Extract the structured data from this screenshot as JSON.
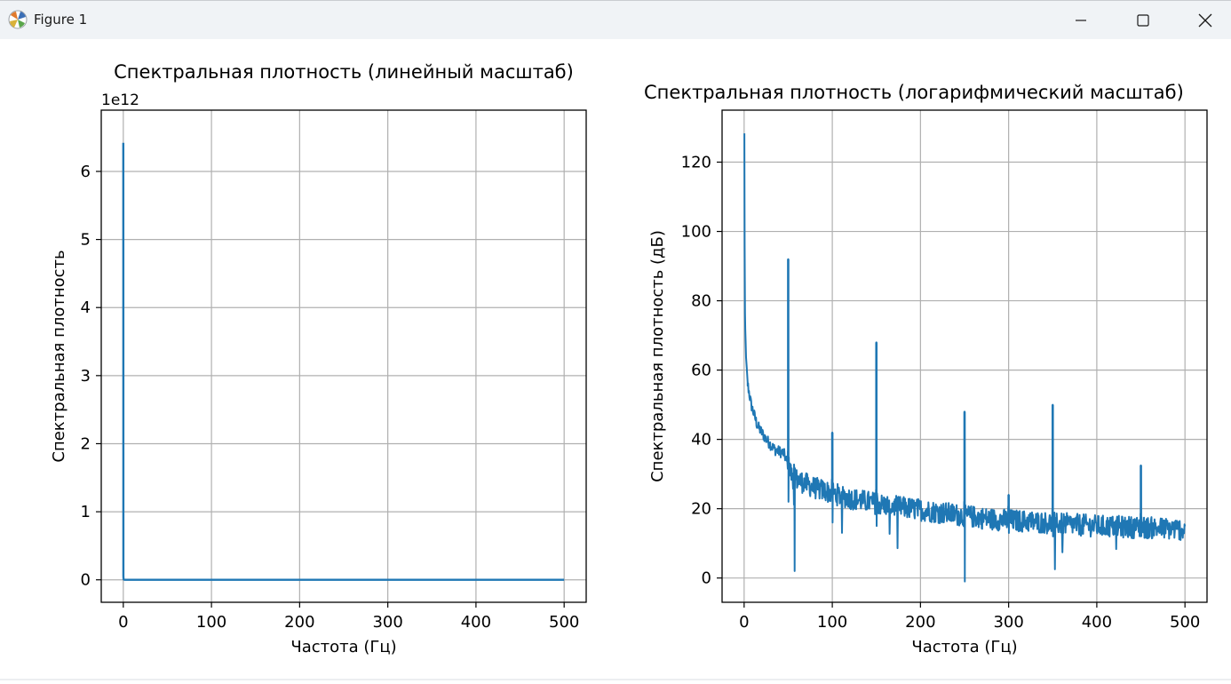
{
  "window": {
    "title": "Figure 1",
    "accent": "#1f77b4"
  },
  "chart_data": [
    {
      "type": "line",
      "title": "Спектральная плотность (линейный масштаб)",
      "xlabel": "Частота (Гц)",
      "ylabel": "Спектральная плотность",
      "offset_text": "1e12",
      "xlim": [
        -25,
        525
      ],
      "ylim": [
        -0.33,
        6.9
      ],
      "xticks": [
        0,
        100,
        200,
        300,
        400,
        500
      ],
      "yticks": [
        0,
        1,
        2,
        3,
        4,
        5,
        6
      ],
      "grid": true,
      "series": [
        {
          "color": "#1f77b4",
          "x": [
            0,
            0.1,
            0.2,
            0.3,
            0.5,
            1,
            2,
            5,
            50,
            100,
            150,
            200,
            250,
            300,
            350,
            400,
            450,
            500
          ],
          "y": [
            6.42,
            0.06,
            0.03,
            0.01,
            0.005,
            0.002,
            0.001,
            0,
            0,
            0,
            0,
            0,
            0,
            0,
            0,
            0,
            0,
            0
          ]
        }
      ]
    },
    {
      "type": "line",
      "title": "Спектральная плотность (логарифмический масштаб)",
      "xlabel": "Частота (Гц)",
      "ylabel": "Спектральная плотность (дБ)",
      "xlim": [
        -25,
        525
      ],
      "ylim": [
        -7,
        135
      ],
      "xticks": [
        0,
        100,
        200,
        300,
        400,
        500
      ],
      "yticks": [
        0,
        20,
        40,
        60,
        80,
        100,
        120
      ],
      "grid": true,
      "series": [
        {
          "color": "#1f77b4",
          "trend": [
            [
              0.3,
              128
            ],
            [
              0.6,
              95
            ],
            [
              1,
              76
            ],
            [
              2,
              64
            ],
            [
              4,
              56
            ],
            [
              8,
              50
            ],
            [
              15,
              44
            ],
            [
              25,
              40
            ],
            [
              35,
              37
            ],
            [
              45,
              36
            ],
            [
              55,
              29
            ],
            [
              80,
              26
            ],
            [
              120,
              23
            ],
            [
              160,
              21
            ],
            [
              220,
              19
            ],
            [
              280,
              17
            ],
            [
              340,
              16
            ],
            [
              400,
              15
            ],
            [
              460,
              14.5
            ],
            [
              500,
              14
            ]
          ],
          "peaks": [
            {
              "x": 50,
              "y": 92,
              "dip": 22
            },
            {
              "x": 57,
              "y": 31,
              "dip": 2
            },
            {
              "x": 100,
              "y": 42,
              "dip": 16
            },
            {
              "x": 150,
              "y": 68,
              "dip": 15
            },
            {
              "x": 250,
              "y": 48,
              "dip": -1
            },
            {
              "x": 300,
              "y": 24,
              "dip": 13
            },
            {
              "x": 350,
              "y": 50,
              "dip": 12
            },
            {
              "x": 450,
              "y": 32.5,
              "dip": 12
            }
          ]
        }
      ]
    }
  ]
}
